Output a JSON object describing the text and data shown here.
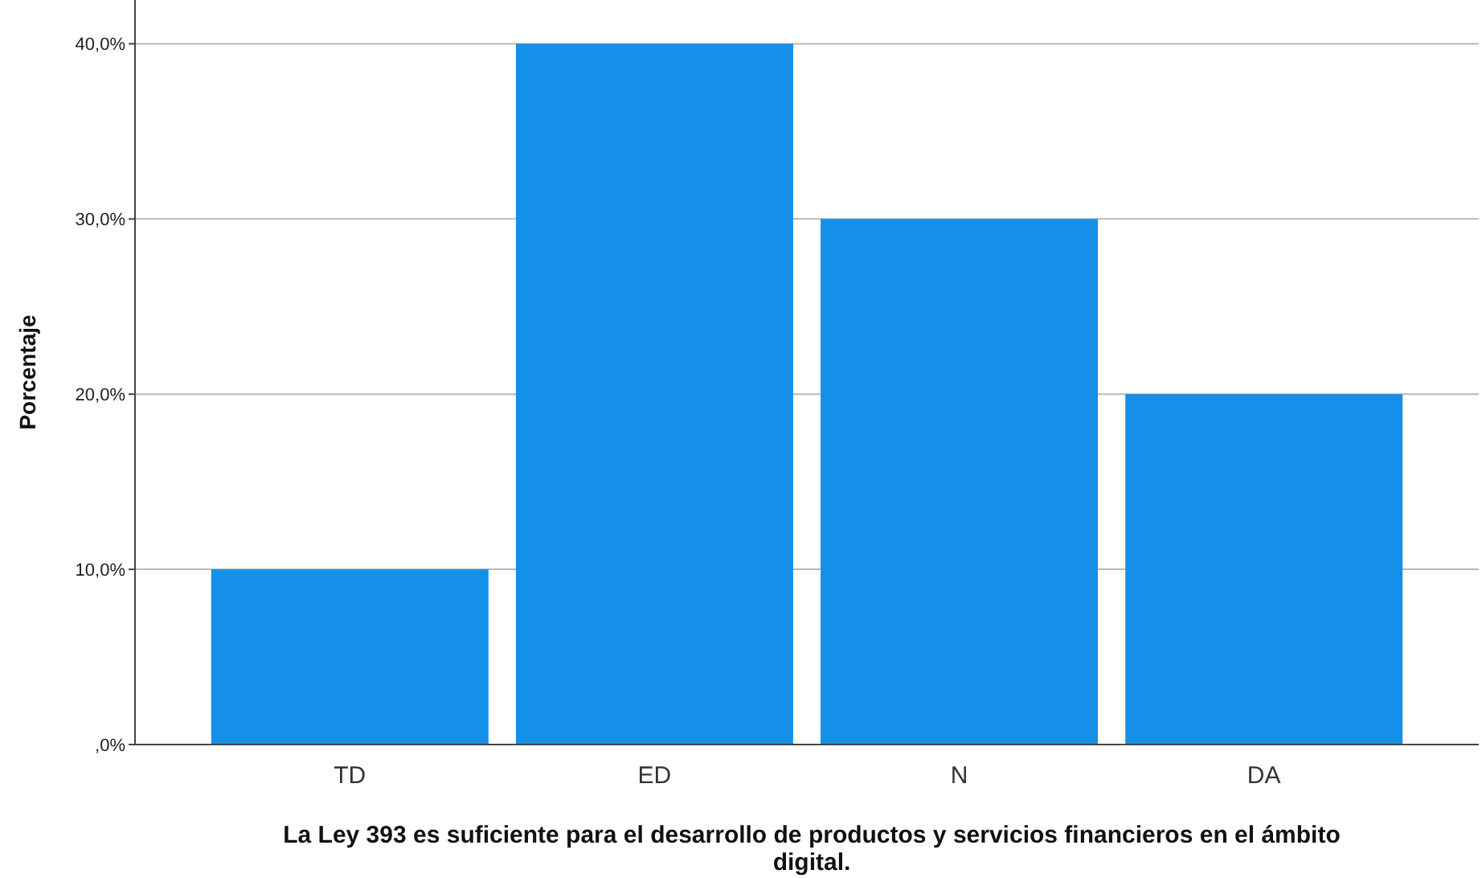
{
  "chart_data": {
    "type": "bar",
    "categories": [
      "TD",
      "ED",
      "N",
      "DA"
    ],
    "values": [
      10,
      40,
      30,
      20
    ],
    "color": "#1490e8",
    "ylabel": "Porcentaje",
    "xlabel": "La Ley 393 es suficiente para el desarrollo de productos y servicios financieros en el ámbito digital.",
    "ylim": [
      0,
      42.5
    ],
    "yticks": [
      {
        "value": 0,
        "label": ",0%"
      },
      {
        "value": 10,
        "label": "10,0%"
      },
      {
        "value": 20,
        "label": "20,0%"
      },
      {
        "value": 30,
        "label": "30,0%"
      },
      {
        "value": 40,
        "label": "40,0%"
      }
    ],
    "grid": "y"
  }
}
